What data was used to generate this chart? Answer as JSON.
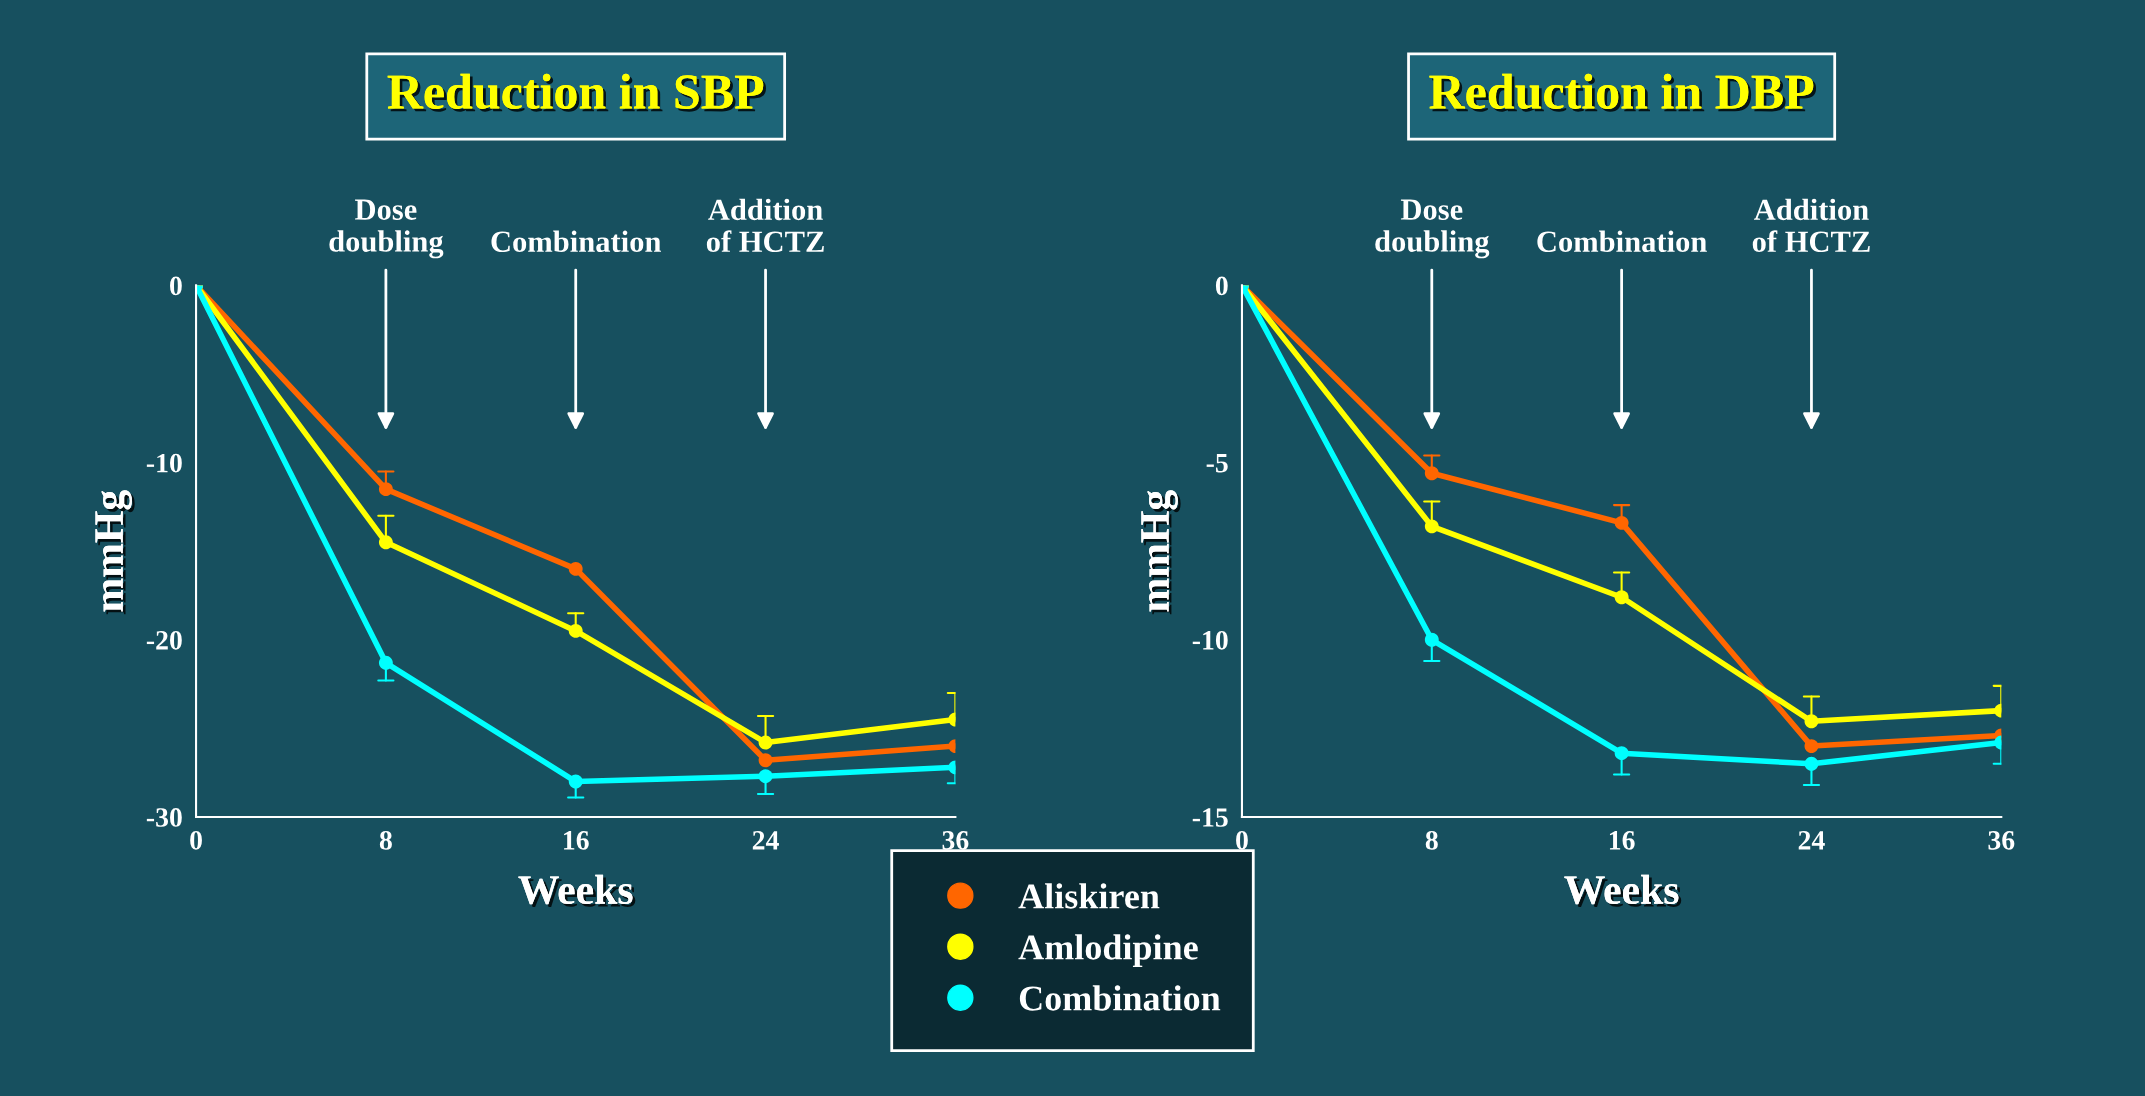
{
  "chart_data": [
    {
      "type": "line",
      "title": "Reduction in SBP",
      "xlabel": "Weeks",
      "ylabel": "mmHg",
      "categories": [
        "0",
        "8",
        "16",
        "24",
        "36"
      ],
      "ylim": [
        -30,
        0
      ],
      "yticks": [
        -30,
        -20,
        -10,
        0
      ],
      "marker": "circle",
      "line_style": "solid",
      "grid": false,
      "legend": "bottom right",
      "annotations": [
        "Dose\ndoubling",
        "Combination",
        "Addition\nof HCTZ"
      ],
      "series": [
        {
          "name": "Aliskiren",
          "color": "#ff6600",
          "values": [
            0,
            -11.5,
            -16.0,
            -26.8,
            -26.0
          ],
          "errors": [
            null,
            [
              -11.5,
              -10.5
            ],
            null,
            null,
            null
          ]
        },
        {
          "name": "Amlodipine",
          "color": "#ffff00",
          "values": [
            0,
            -14.5,
            -19.5,
            -25.8,
            -24.5
          ],
          "errors": [
            null,
            [
              -14.5,
              -13.0
            ],
            [
              -19.5,
              -18.5
            ],
            [
              -25.8,
              -24.3
            ],
            [
              -24.5,
              -23.0
            ]
          ]
        },
        {
          "name": "Combination",
          "color": "#00ffff",
          "values": [
            0,
            -21.3,
            -28.0,
            -27.7,
            -27.2
          ],
          "errors": [
            null,
            [
              -22.3,
              -21.3
            ],
            [
              -28.9,
              -28.0
            ],
            [
              -28.7,
              -27.7
            ],
            [
              -28.1,
              -27.2
            ]
          ]
        }
      ]
    },
    {
      "type": "line",
      "title": "Reduction in DBP",
      "xlabel": "Weeks",
      "ylabel": "mmHg",
      "categories": [
        "0",
        "8",
        "16",
        "24",
        "36"
      ],
      "ylim": [
        -15,
        0
      ],
      "yticks": [
        -15,
        -10,
        -5,
        0
      ],
      "marker": "circle",
      "line_style": "solid",
      "grid": false,
      "annotations": [
        "Dose\ndoubling",
        "Combination",
        "Addition\nof HCTZ"
      ],
      "series": [
        {
          "color": "#ff6600",
          "values": [
            0,
            -5.3,
            -6.7,
            -13.0,
            -12.7
          ],
          "errors": [
            null,
            [
              -5.3,
              -4.8
            ],
            [
              -6.7,
              -6.2
            ],
            null,
            null
          ]
        },
        {
          "color": "#ffff00",
          "values": [
            0,
            -6.8,
            -8.8,
            -12.3,
            -12.0
          ],
          "errors": [
            null,
            [
              -6.8,
              -6.1
            ],
            [
              -8.8,
              -8.1
            ],
            [
              -12.3,
              -11.6
            ],
            [
              -12.0,
              -11.3
            ]
          ]
        },
        {
          "color": "#00ffff",
          "values": [
            0,
            -10.0,
            -13.2,
            -13.5,
            -12.9
          ],
          "errors": [
            null,
            [
              -10.6,
              -10.0
            ],
            [
              -13.8,
              -13.2
            ],
            [
              -14.1,
              -13.5
            ],
            [
              -13.5,
              -12.9
            ]
          ]
        }
      ]
    }
  ]
}
